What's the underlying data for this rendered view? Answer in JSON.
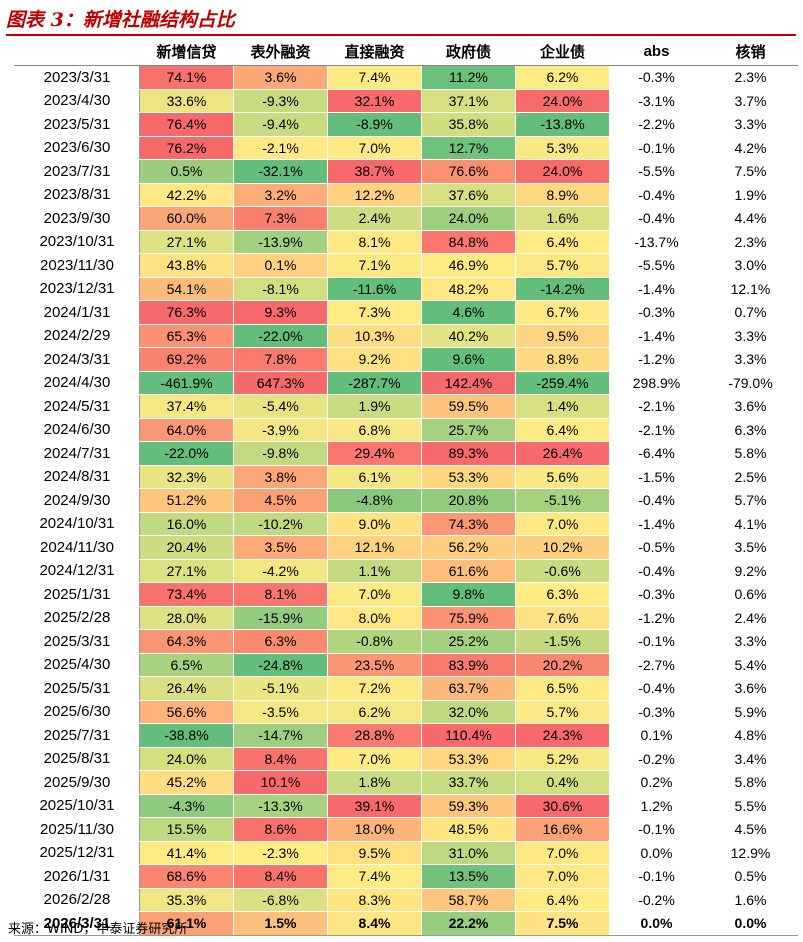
{
  "title": "图表 3：新增社融结构占比",
  "source": "来源：WIND，中泰证券研究所",
  "chart_data": {
    "type": "table",
    "columns": [
      "新增信贷",
      "表外融资",
      "直接融资",
      "政府债",
      "企业债",
      "abs",
      "核销"
    ],
    "rows": [
      {
        "date": "2023/3/31",
        "values": [
          "74.1%",
          "3.6%",
          "7.4%",
          "11.2%",
          "6.2%",
          "-0.3%",
          "2.3%"
        ]
      },
      {
        "date": "2023/4/30",
        "values": [
          "33.6%",
          "-9.3%",
          "32.1%",
          "37.1%",
          "24.0%",
          "-3.1%",
          "3.7%"
        ]
      },
      {
        "date": "2023/5/31",
        "values": [
          "76.4%",
          "-9.4%",
          "-8.9%",
          "35.8%",
          "-13.8%",
          "-2.2%",
          "3.3%"
        ]
      },
      {
        "date": "2023/6/30",
        "values": [
          "76.2%",
          "-2.1%",
          "7.0%",
          "12.7%",
          "5.3%",
          "-0.1%",
          "4.2%"
        ]
      },
      {
        "date": "2023/7/31",
        "values": [
          "0.5%",
          "-32.1%",
          "38.7%",
          "76.6%",
          "24.0%",
          "-5.5%",
          "7.5%"
        ]
      },
      {
        "date": "2023/8/31",
        "values": [
          "42.2%",
          "3.2%",
          "12.2%",
          "37.6%",
          "8.9%",
          "-0.4%",
          "1.9%"
        ]
      },
      {
        "date": "2023/9/30",
        "values": [
          "60.0%",
          "7.3%",
          "2.4%",
          "24.0%",
          "1.6%",
          "-0.4%",
          "4.4%"
        ]
      },
      {
        "date": "2023/10/31",
        "values": [
          "27.1%",
          "-13.9%",
          "8.1%",
          "84.8%",
          "6.4%",
          "-13.7%",
          "2.3%"
        ]
      },
      {
        "date": "2023/11/30",
        "values": [
          "43.8%",
          "0.1%",
          "7.1%",
          "46.9%",
          "5.7%",
          "-5.5%",
          "3.0%"
        ]
      },
      {
        "date": "2023/12/31",
        "values": [
          "54.1%",
          "-8.1%",
          "-11.6%",
          "48.2%",
          "-14.2%",
          "-1.4%",
          "12.1%"
        ]
      },
      {
        "date": "2024/1/31",
        "values": [
          "76.3%",
          "9.3%",
          "7.3%",
          "4.6%",
          "6.7%",
          "-0.3%",
          "0.7%"
        ]
      },
      {
        "date": "2024/2/29",
        "values": [
          "65.3%",
          "-22.0%",
          "10.3%",
          "40.2%",
          "9.5%",
          "-1.4%",
          "3.3%"
        ]
      },
      {
        "date": "2024/3/31",
        "values": [
          "69.2%",
          "7.8%",
          "9.2%",
          "9.6%",
          "8.8%",
          "-1.2%",
          "3.3%"
        ]
      },
      {
        "date": "2024/4/30",
        "values": [
          "-461.9%",
          "647.3%",
          "-287.7%",
          "142.4%",
          "-259.4%",
          "298.9%",
          "-79.0%"
        ]
      },
      {
        "date": "2024/5/31",
        "values": [
          "37.4%",
          "-5.4%",
          "1.9%",
          "59.5%",
          "1.4%",
          "-2.1%",
          "3.6%"
        ]
      },
      {
        "date": "2024/6/30",
        "values": [
          "64.0%",
          "-3.9%",
          "6.8%",
          "25.7%",
          "6.4%",
          "-2.1%",
          "6.3%"
        ]
      },
      {
        "date": "2024/7/31",
        "values": [
          "-22.0%",
          "-9.8%",
          "29.4%",
          "89.3%",
          "26.4%",
          "-6.4%",
          "5.8%"
        ]
      },
      {
        "date": "2024/8/31",
        "values": [
          "32.3%",
          "3.8%",
          "6.1%",
          "53.3%",
          "5.6%",
          "-1.5%",
          "2.5%"
        ]
      },
      {
        "date": "2024/9/30",
        "values": [
          "51.2%",
          "4.5%",
          "-4.8%",
          "20.8%",
          "-5.1%",
          "-0.4%",
          "5.7%"
        ]
      },
      {
        "date": "2024/10/31",
        "values": [
          "16.0%",
          "-10.2%",
          "9.0%",
          "74.3%",
          "7.0%",
          "-1.4%",
          "4.1%"
        ]
      },
      {
        "date": "2024/11/30",
        "values": [
          "20.4%",
          "3.5%",
          "12.1%",
          "56.2%",
          "10.2%",
          "-0.5%",
          "3.5%"
        ]
      },
      {
        "date": "2024/12/31",
        "values": [
          "27.1%",
          "-4.2%",
          "1.1%",
          "61.6%",
          "-0.6%",
          "-0.4%",
          "9.2%"
        ]
      },
      {
        "date": "2025/1/31",
        "values": [
          "73.4%",
          "8.1%",
          "7.0%",
          "9.8%",
          "6.3%",
          "-0.3%",
          "0.6%"
        ]
      },
      {
        "date": "2025/2/28",
        "values": [
          "28.0%",
          "-15.9%",
          "8.0%",
          "75.9%",
          "7.6%",
          "-1.2%",
          "2.4%"
        ]
      },
      {
        "date": "2025/3/31",
        "values": [
          "64.3%",
          "6.3%",
          "-0.8%",
          "25.2%",
          "-1.5%",
          "-0.1%",
          "3.3%"
        ]
      },
      {
        "date": "2025/4/30",
        "values": [
          "6.5%",
          "-24.8%",
          "23.5%",
          "83.9%",
          "20.2%",
          "-2.7%",
          "5.4%"
        ]
      },
      {
        "date": "2025/5/31",
        "values": [
          "26.4%",
          "-5.1%",
          "7.2%",
          "63.7%",
          "6.5%",
          "-0.4%",
          "3.6%"
        ]
      },
      {
        "date": "2025/6/30",
        "values": [
          "56.6%",
          "-3.5%",
          "6.2%",
          "32.0%",
          "5.7%",
          "-0.3%",
          "5.9%"
        ]
      },
      {
        "date": "2025/7/31",
        "values": [
          "-38.8%",
          "-14.7%",
          "28.8%",
          "110.4%",
          "24.3%",
          "0.1%",
          "4.8%"
        ]
      },
      {
        "date": "2025/8/31",
        "values": [
          "24.0%",
          "8.4%",
          "7.0%",
          "53.3%",
          "5.2%",
          "-0.2%",
          "3.4%"
        ]
      },
      {
        "date": "2025/9/30",
        "values": [
          "45.2%",
          "10.1%",
          "1.8%",
          "33.7%",
          "0.4%",
          "0.2%",
          "5.8%"
        ]
      },
      {
        "date": "2025/10/31",
        "values": [
          "-4.3%",
          "-13.3%",
          "39.1%",
          "59.3%",
          "30.6%",
          "1.2%",
          "5.5%"
        ]
      },
      {
        "date": "2025/11/30",
        "values": [
          "15.5%",
          "8.6%",
          "18.0%",
          "48.5%",
          "16.6%",
          "-0.1%",
          "4.5%"
        ]
      },
      {
        "date": "2025/12/31",
        "values": [
          "41.4%",
          "-2.3%",
          "9.5%",
          "31.0%",
          "7.0%",
          "0.0%",
          "12.9%"
        ]
      },
      {
        "date": "2026/1/31",
        "values": [
          "68.6%",
          "8.4%",
          "7.4%",
          "13.5%",
          "7.0%",
          "-0.1%",
          "0.5%"
        ]
      },
      {
        "date": "2026/2/28",
        "values": [
          "35.3%",
          "-6.8%",
          "8.3%",
          "58.7%",
          "6.4%",
          "-0.2%",
          "1.6%"
        ]
      },
      {
        "date": "2026/3/31",
        "values": [
          "61.1%",
          "1.5%",
          "8.4%",
          "22.2%",
          "7.5%",
          "0.0%",
          "0.0%"
        ]
      }
    ],
    "colors": {
      "scale_low": "#63be7b",
      "scale_mid": "#ffeb84",
      "scale_high": "#f8696b"
    },
    "heatmap_columns": 5
  }
}
